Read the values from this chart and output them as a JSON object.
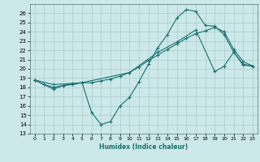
{
  "title": "",
  "xlabel": "Humidex (Indice chaleur)",
  "ylabel": "",
  "xlim": [
    -0.5,
    23.5
  ],
  "ylim": [
    13,
    27
  ],
  "xticks": [
    0,
    1,
    2,
    3,
    4,
    5,
    6,
    7,
    8,
    9,
    10,
    11,
    12,
    13,
    14,
    15,
    16,
    17,
    18,
    19,
    20,
    21,
    22,
    23
  ],
  "yticks": [
    13,
    14,
    15,
    16,
    17,
    18,
    19,
    20,
    21,
    22,
    23,
    24,
    25,
    26
  ],
  "bg_color": "#cce8e8",
  "grid_color": "#aacccc",
  "line_color": "#1a7070",
  "lines": [
    {
      "x": [
        0,
        1,
        2,
        3,
        4,
        5,
        6,
        7,
        8,
        9,
        10,
        11,
        12,
        13,
        14,
        15,
        16,
        17,
        18,
        19,
        20,
        21,
        22,
        23
      ],
      "y": [
        18.8,
        18.3,
        17.8,
        18.2,
        18.3,
        18.5,
        15.3,
        14.0,
        14.3,
        16.0,
        16.9,
        18.6,
        20.5,
        22.3,
        23.7,
        25.5,
        26.4,
        26.2,
        24.7,
        24.6,
        23.7,
        21.8,
        20.5,
        20.3
      ]
    },
    {
      "x": [
        0,
        1,
        2,
        3,
        4,
        5,
        6,
        7,
        8,
        9,
        10,
        11,
        12,
        13,
        14,
        15,
        16,
        17,
        18,
        19,
        20,
        21,
        22,
        23
      ],
      "y": [
        18.8,
        18.3,
        18.0,
        18.2,
        18.4,
        18.5,
        18.5,
        18.7,
        18.9,
        19.2,
        19.6,
        20.2,
        20.9,
        21.5,
        22.1,
        22.7,
        23.3,
        23.8,
        24.1,
        24.5,
        24.0,
        22.1,
        20.8,
        20.3
      ]
    },
    {
      "x": [
        0,
        2,
        5,
        10,
        13,
        15,
        17,
        19,
        20,
        21,
        22,
        23
      ],
      "y": [
        18.8,
        18.3,
        18.5,
        19.6,
        21.8,
        22.9,
        24.2,
        19.7,
        20.3,
        21.8,
        20.4,
        20.3
      ]
    }
  ]
}
